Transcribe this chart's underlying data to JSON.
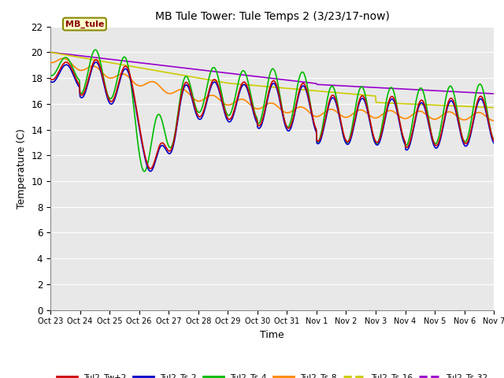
{
  "title": "MB Tule Tower: Tule Temps 2 (3/23/17-now)",
  "xlabel": "Time",
  "ylabel": "Temperature (C)",
  "ylim": [
    0,
    22
  ],
  "yticks": [
    0,
    2,
    4,
    6,
    8,
    10,
    12,
    14,
    16,
    18,
    20,
    22
  ],
  "plot_bg_color": "#e8e8e8",
  "legend_label": "MB_tule",
  "series": {
    "Tul2_Tw+2": {
      "color": "#cc0000",
      "lw": 1.2
    },
    "Tul2_Ts-2": {
      "color": "#0000cc",
      "lw": 1.2
    },
    "Tul2_Ts-4": {
      "color": "#00bb00",
      "lw": 1.2
    },
    "Tul2_Ts-8": {
      "color": "#ff8800",
      "lw": 1.2
    },
    "Tul2_Ts-16": {
      "color": "#cccc00",
      "lw": 1.2
    },
    "Tul2_Ts-32": {
      "color": "#9900cc",
      "lw": 1.2
    }
  },
  "x_tick_labels": [
    "Oct 23",
    "Oct 24",
    "Oct 25",
    "Oct 26",
    "Oct 27",
    "Oct 28",
    "Oct 29",
    "Oct 30",
    "Oct 31",
    "Nov 1",
    "Nov 2",
    "Nov 3",
    "Nov 4",
    "Nov 5",
    "Nov 6",
    "Nov 7"
  ],
  "num_days": 15
}
